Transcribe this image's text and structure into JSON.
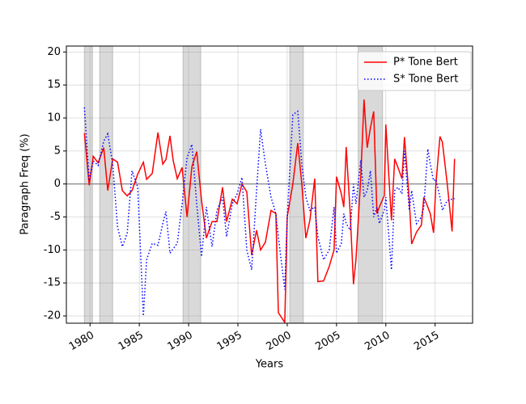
{
  "chart_data": {
    "type": "line",
    "xlabel": "Years",
    "ylabel": "Paragraph Freq (%)",
    "xlim": [
      1977.6,
      2018.8
    ],
    "ylim": [
      -21.1,
      20.9
    ],
    "xticks": [
      1980,
      1985,
      1990,
      1995,
      2000,
      2005,
      2010,
      2015
    ],
    "yticks": [
      -20,
      -15,
      -10,
      -5,
      0,
      5,
      10,
      15,
      20
    ],
    "grid": true,
    "legend": "upper right",
    "hline": 0,
    "shaded_regions": [
      [
        1979.43,
        1980.25
      ],
      [
        1980.98,
        1982.3
      ],
      [
        1989.43,
        1991.23
      ],
      [
        2000.25,
        2001.64
      ],
      [
        2007.2,
        2009.67
      ]
    ],
    "x": [
      1979.43,
      1979.92,
      1980.33,
      1980.82,
      1981.39,
      1981.8,
      1982.3,
      1982.79,
      1983.28,
      1983.77,
      1984.26,
      1984.84,
      1985.41,
      1985.74,
      1986.31,
      1986.89,
      1987.38,
      1987.7,
      1988.11,
      1988.44,
      1988.85,
      1989.34,
      1989.84,
      1990.33,
      1990.82,
      1991.31,
      1991.8,
      1992.38,
      1992.87,
      1993.44,
      1993.85,
      1994.43,
      1994.92,
      1995.41,
      1995.9,
      1996.39,
      1996.89,
      1997.3,
      1997.79,
      1998.36,
      1998.85,
      1999.1,
      1999.75,
      2000.0,
      2000.57,
      2001.07,
      2001.48,
      2001.89,
      2002.3,
      2002.79,
      2003.11,
      2003.69,
      2004.26,
      2004.75,
      2005.0,
      2005.49,
      2005.74,
      2005.98,
      2006.39,
      2006.72,
      2006.97,
      2007.46,
      2007.79,
      2008.11,
      2008.44,
      2008.77,
      2009.1,
      2009.34,
      2009.84,
      2010.0,
      2010.57,
      2010.9,
      2011.23,
      2011.64,
      2011.89,
      2012.38,
      2012.62,
      2013.11,
      2013.61,
      2013.85,
      2014.26,
      2014.51,
      2014.84,
      2015.08,
      2015.49,
      2015.74,
      2016.23,
      2016.72,
      2016.97
    ],
    "series": [
      {
        "name": "P* Tone Bert",
        "color": "#ff0000",
        "linestyle": "solid",
        "values": [
          7.7,
          -0.2,
          4.2,
          3.2,
          5.5,
          -1,
          3.8,
          3.3,
          -1,
          -1.8,
          -1,
          1.5,
          3.3,
          0.7,
          1.6,
          7.8,
          3,
          3.7,
          7.3,
          3.5,
          0.8,
          2.5,
          -5,
          2.6,
          4.9,
          -2.5,
          -8.2,
          -5.7,
          -5.7,
          -0.5,
          -5.7,
          -2.3,
          -3,
          0,
          -1.2,
          -10.8,
          -7,
          -10,
          -8.8,
          -4,
          -4.5,
          -19.5,
          -21,
          -5,
          0,
          6.2,
          0,
          -8.2,
          -5.5,
          0.8,
          -14.8,
          -14.7,
          -12.5,
          -10,
          1.1,
          -1.5,
          -3.5,
          5.6,
          -4.5,
          -15.2,
          -11.5,
          1,
          12.8,
          5.5,
          8.5,
          11,
          -4.5,
          -3.5,
          -1.8,
          9,
          -5.5,
          3.8,
          2.5,
          0.8,
          7.1,
          -2.5,
          -9.1,
          -7.3,
          -6.2,
          -2,
          -3.5,
          -4.5,
          -7.4,
          0,
          7.2,
          6.3,
          0,
          -7.2,
          3.8
        ]
      },
      {
        "name": "S* Tone Bert",
        "color": "#0000ff",
        "linestyle": "dotted",
        "values": [
          11.6,
          0.5,
          3.5,
          2.8,
          6.5,
          7.6,
          3,
          -6.5,
          -9.5,
          -7.5,
          2,
          -0.5,
          -20,
          -11.5,
          -9,
          -9.3,
          -6,
          -4.2,
          -10.5,
          -9.8,
          -9,
          -3,
          4,
          6,
          -3,
          -11,
          -3.5,
          -9.5,
          -4,
          -2,
          -8,
          -3,
          -1.5,
          1,
          -10,
          -13,
          -1,
          8.3,
          3,
          -2,
          -4.5,
          -8,
          -16,
          -5,
          10.5,
          11,
          3,
          -2,
          -4,
          -3.5,
          -8,
          -11.5,
          -10,
          -3.5,
          -10.5,
          -9,
          -4.5,
          -6,
          -7,
          0,
          -3,
          3.6,
          -2,
          -1,
          2,
          -5,
          -3.5,
          -6,
          -4,
          -2,
          -13,
          -1,
          -0.5,
          -1.5,
          5,
          -4,
          -1,
          -6,
          -5,
          -3.5,
          5.3,
          3,
          0.5,
          0.7,
          -2,
          -4,
          -2.5,
          -2.3,
          -2.2
        ]
      }
    ]
  }
}
